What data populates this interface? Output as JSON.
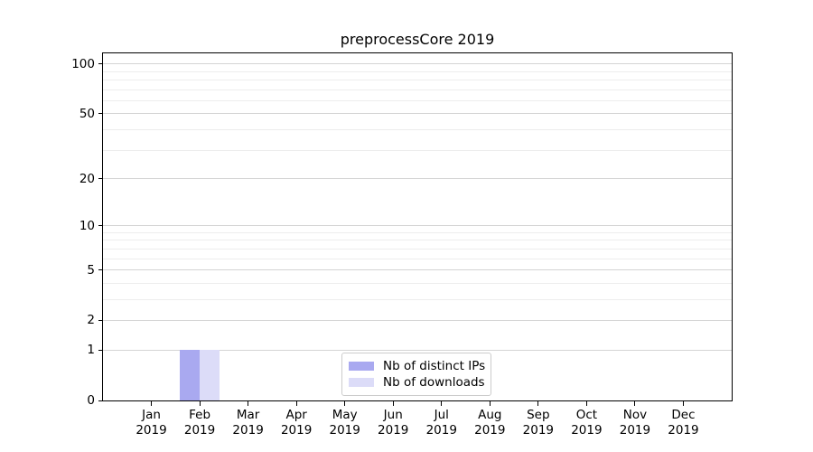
{
  "chart_data": {
    "type": "bar",
    "title": "preprocessCore 2019",
    "xlabel": "",
    "ylabel": "",
    "categories": [
      "Jan 2019",
      "Feb 2019",
      "Mar 2019",
      "Apr 2019",
      "May 2019",
      "Jun 2019",
      "Jul 2019",
      "Aug 2019",
      "Sep 2019",
      "Oct 2019",
      "Nov 2019",
      "Dec 2019"
    ],
    "series": [
      {
        "name": "Nb of distinct IPs",
        "color": "#a9a9f0",
        "values": [
          0,
          1,
          0,
          0,
          0,
          0,
          0,
          0,
          0,
          0,
          0,
          0
        ]
      },
      {
        "name": "Nb of downloads",
        "color": "#dcdcf8",
        "values": [
          0,
          1,
          0,
          0,
          0,
          0,
          0,
          0,
          0,
          0,
          0,
          0
        ]
      }
    ],
    "y_scale": "log1p",
    "ylim": [
      0,
      116
    ],
    "y_ticks": [
      0,
      1,
      2,
      5,
      10,
      20,
      50,
      100
    ],
    "y_minor_gridlines": [
      3,
      4,
      6,
      7,
      8,
      9,
      30,
      40,
      60,
      70,
      80,
      90
    ],
    "grid": true,
    "legend_position": "lower center"
  },
  "colors": {
    "grid_major": "#d4d4d4",
    "grid_minor": "#ededed",
    "spine": "#000000",
    "text": "#000000",
    "legend_border": "#cccccc",
    "background": "#ffffff"
  }
}
